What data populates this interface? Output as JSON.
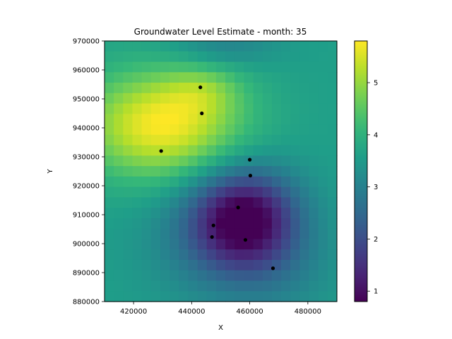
{
  "chart_data": {
    "type": "heatmap",
    "title": "Groundwater Level Estimate - month: 35",
    "xlabel": "X",
    "ylabel": "Y",
    "xlim": [
      410000,
      490000
    ],
    "ylim": [
      880000,
      970000
    ],
    "x_ticks": [
      420000,
      440000,
      460000,
      480000
    ],
    "y_ticks": [
      880000,
      890000,
      900000,
      910000,
      920000,
      930000,
      940000,
      950000,
      960000,
      970000
    ],
    "x_tick_labels": [
      "420000",
      "440000",
      "460000",
      "480000"
    ],
    "y_tick_labels": [
      "880000",
      "890000",
      "900000",
      "910000",
      "920000",
      "930000",
      "940000",
      "950000",
      "960000",
      "970000"
    ],
    "colormap": "viridis",
    "color_range": [
      0.8,
      5.8
    ],
    "colorbar_ticks": [
      1,
      2,
      3,
      4,
      5
    ],
    "colorbar_tick_labels": [
      "1",
      "2",
      "3",
      "4",
      "5"
    ],
    "grid_size": [
      25,
      25
    ],
    "field_features": {
      "background": 3.6,
      "highs": [
        {
          "x": 430000,
          "y": 941000,
          "value": 5.75
        },
        {
          "x": 444000,
          "y": 953000,
          "value": 4.4
        }
      ],
      "lows": [
        {
          "x": 458000,
          "y": 909000,
          "value": 0.85
        },
        {
          "x": 451000,
          "y": 966000,
          "value": 3.1
        }
      ]
    },
    "wells": [
      {
        "x": 443000,
        "y": 954000
      },
      {
        "x": 443500,
        "y": 945000
      },
      {
        "x": 429500,
        "y": 932000
      },
      {
        "x": 460000,
        "y": 929000
      },
      {
        "x": 460200,
        "y": 923500
      },
      {
        "x": 456000,
        "y": 912500
      },
      {
        "x": 447500,
        "y": 906300
      },
      {
        "x": 447000,
        "y": 902300
      },
      {
        "x": 458500,
        "y": 901300
      },
      {
        "x": 468000,
        "y": 891500
      }
    ]
  }
}
